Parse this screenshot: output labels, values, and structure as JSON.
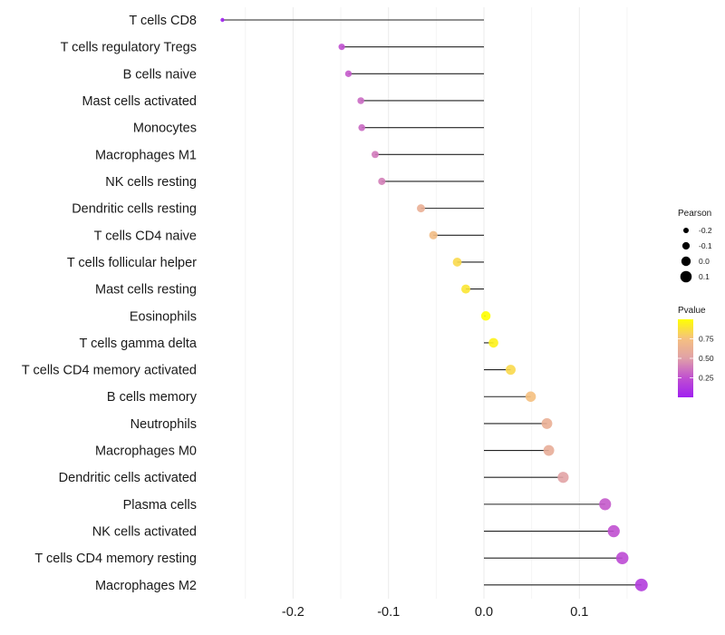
{
  "chart_data": {
    "type": "lollipop",
    "title": "",
    "xlabel": "",
    "ylabel": "",
    "xlim": [
      -0.28,
      0.175
    ],
    "x_ticks": [
      -0.2,
      -0.1,
      0.0,
      0.1
    ],
    "x_tick_labels": [
      "-0.2",
      "-0.1",
      "0.0",
      "0.1"
    ],
    "minor_grid": [
      -0.25,
      -0.15,
      -0.05,
      0.05,
      0.15
    ],
    "grid": true,
    "stem_origin": 0.0,
    "categories": [
      "T cells CD8",
      "T cells regulatory  Tregs ",
      "B cells naive",
      "Mast cells activated",
      "Monocytes",
      "Macrophages M1",
      "NK cells resting",
      "Dendritic cells resting",
      "T cells CD4 naive",
      "T cells follicular helper",
      "Mast cells resting",
      "Eosinophils",
      "T cells gamma delta",
      "T cells CD4 memory activated",
      "B cells memory",
      "Neutrophils",
      "Macrophages M0",
      "Dendritic cells activated",
      "Plasma cells",
      "NK cells activated",
      "T cells CD4 memory resting",
      "Macrophages M2"
    ],
    "pearson": [
      -0.274,
      -0.149,
      -0.142,
      -0.129,
      -0.128,
      -0.114,
      -0.107,
      -0.066,
      -0.053,
      -0.028,
      -0.019,
      0.002,
      0.01,
      0.028,
      0.049,
      0.066,
      0.068,
      0.083,
      0.127,
      0.136,
      0.145,
      0.165
    ],
    "pvalue": [
      0.0,
      0.25,
      0.28,
      0.33,
      0.33,
      0.38,
      0.4,
      0.62,
      0.72,
      0.85,
      0.9,
      1.0,
      0.95,
      0.85,
      0.75,
      0.62,
      0.6,
      0.52,
      0.28,
      0.25,
      0.22,
      0.15
    ],
    "legend": {
      "size": {
        "title": "Pearson",
        "breaks": [
          -0.2,
          -0.1,
          0.0,
          0.1
        ],
        "labels": [
          "-0.2",
          "-0.1",
          "0.0",
          "0.1"
        ]
      },
      "color": {
        "title": "Pvalue",
        "breaks": [
          0.25,
          0.5,
          0.75
        ],
        "labels": [
          "0.25",
          "0.50",
          "0.75"
        ],
        "range": [
          0.0,
          1.0
        ],
        "low_color": "#A020F0",
        "mid_color": "#E0A0A0",
        "high_color": "#FFFF00"
      },
      "position": "right"
    }
  }
}
